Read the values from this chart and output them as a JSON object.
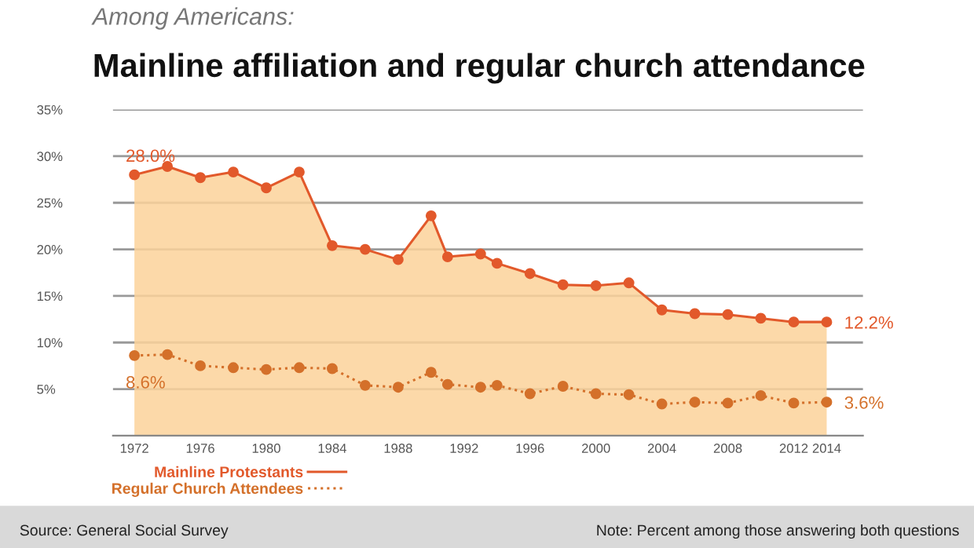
{
  "chart_data": {
    "type": "line",
    "subtitle": "Among Americans:",
    "title": "Mainline affiliation and regular church attendance",
    "x": [
      1972,
      1974,
      1976,
      1978,
      1980,
      1982,
      1984,
      1986,
      1988,
      1990,
      1991,
      1993,
      1994,
      1996,
      1998,
      2000,
      2002,
      2004,
      2006,
      2008,
      2010,
      2012,
      2014
    ],
    "series": [
      {
        "name": "Mainline Protestants",
        "type": "area",
        "color": "#e2592b",
        "line_style": "solid",
        "values": [
          28.0,
          28.9,
          27.7,
          28.3,
          26.6,
          28.3,
          20.4,
          20.0,
          18.9,
          23.6,
          19.2,
          19.5,
          18.5,
          17.4,
          16.2,
          16.1,
          16.4,
          13.5,
          13.1,
          13.0,
          12.6,
          12.2,
          12.2
        ],
        "value_labels": [
          "28.0%",
          null,
          null,
          null,
          null,
          null,
          null,
          null,
          null,
          null,
          null,
          null,
          null,
          null,
          null,
          null,
          null,
          null,
          null,
          null,
          null,
          null,
          "12.2%"
        ]
      },
      {
        "name": "Regular Church Attendees",
        "type": "line",
        "color": "#d4702a",
        "line_style": "dotted",
        "values": [
          8.6,
          8.7,
          7.5,
          7.3,
          7.1,
          7.3,
          7.2,
          5.4,
          5.2,
          6.8,
          5.5,
          5.2,
          5.4,
          4.5,
          5.3,
          4.5,
          4.4,
          3.4,
          3.6,
          3.5,
          4.3,
          3.5,
          3.6
        ],
        "value_labels": [
          "8.6%",
          null,
          null,
          null,
          null,
          null,
          null,
          null,
          null,
          null,
          null,
          null,
          null,
          null,
          null,
          null,
          null,
          null,
          null,
          null,
          null,
          null,
          "3.6%"
        ]
      }
    ],
    "marker": "circle",
    "xlim": [
      1970.7,
      2016.2
    ],
    "xticks": [
      1972,
      1976,
      1980,
      1984,
      1988,
      1992,
      1996,
      2000,
      2004,
      2008,
      2012,
      2014
    ],
    "ylim": [
      0,
      35
    ],
    "yticks": [
      {
        "value": 5,
        "label": "5%"
      },
      {
        "value": 10,
        "label": "10%"
      },
      {
        "value": 15,
        "label": "15%"
      },
      {
        "value": 20,
        "label": "20%"
      },
      {
        "value": 25,
        "label": "25%"
      },
      {
        "value": 30,
        "label": "30%"
      },
      {
        "value": 35,
        "label": "35%"
      }
    ],
    "grid": "y",
    "legend": "bottom left",
    "annotations": [
      "Source: General Social Survey",
      "Note: Percent among those answering both questions"
    ]
  }
}
